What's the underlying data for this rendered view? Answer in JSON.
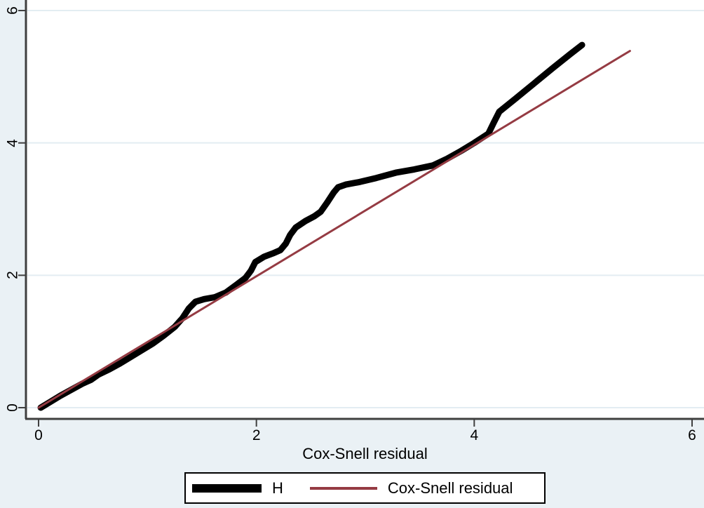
{
  "figure": {
    "background": "#eaf1f5",
    "plot_background": "#ffffff",
    "grid_color": "#e3edf2",
    "axis_color": "#3f3f3f",
    "text_color": "#000000"
  },
  "chart_data": {
    "type": "line",
    "title": "",
    "xlabel": "Cox-Snell residual",
    "ylabel": "",
    "xlim": [
      0,
      6
    ],
    "ylim": [
      0,
      6
    ],
    "xticks": [
      "0",
      "2",
      "4",
      "6"
    ],
    "yticks": [
      "0",
      "2",
      "4",
      "6"
    ],
    "grid": "horizontal-only",
    "legend_position": "bottom-center",
    "series": [
      {
        "name": "H",
        "color": "#000000",
        "stroke_width": 9,
        "points": [
          [
            0.02,
            0.0
          ],
          [
            0.1,
            0.08
          ],
          [
            0.2,
            0.18
          ],
          [
            0.3,
            0.27
          ],
          [
            0.4,
            0.36
          ],
          [
            0.48,
            0.42
          ],
          [
            0.55,
            0.5
          ],
          [
            0.65,
            0.58
          ],
          [
            0.75,
            0.67
          ],
          [
            0.85,
            0.77
          ],
          [
            0.95,
            0.87
          ],
          [
            1.05,
            0.97
          ],
          [
            1.15,
            1.09
          ],
          [
            1.25,
            1.22
          ],
          [
            1.32,
            1.35
          ],
          [
            1.38,
            1.5
          ],
          [
            1.44,
            1.6
          ],
          [
            1.52,
            1.64
          ],
          [
            1.62,
            1.67
          ],
          [
            1.72,
            1.74
          ],
          [
            1.82,
            1.86
          ],
          [
            1.9,
            1.96
          ],
          [
            1.95,
            2.07
          ],
          [
            1.99,
            2.2
          ],
          [
            2.07,
            2.28
          ],
          [
            2.15,
            2.33
          ],
          [
            2.22,
            2.38
          ],
          [
            2.27,
            2.48
          ],
          [
            2.31,
            2.61
          ],
          [
            2.36,
            2.72
          ],
          [
            2.45,
            2.82
          ],
          [
            2.53,
            2.89
          ],
          [
            2.59,
            2.96
          ],
          [
            2.65,
            3.1
          ],
          [
            2.71,
            3.25
          ],
          [
            2.75,
            3.33
          ],
          [
            2.82,
            3.37
          ],
          [
            2.95,
            3.41
          ],
          [
            3.1,
            3.47
          ],
          [
            3.28,
            3.55
          ],
          [
            3.45,
            3.6
          ],
          [
            3.62,
            3.66
          ],
          [
            3.75,
            3.76
          ],
          [
            3.88,
            3.88
          ],
          [
            4.0,
            4.0
          ],
          [
            4.13,
            4.14
          ],
          [
            4.18,
            4.31
          ],
          [
            4.23,
            4.47
          ],
          [
            4.38,
            4.67
          ],
          [
            4.55,
            4.9
          ],
          [
            4.72,
            5.13
          ],
          [
            4.88,
            5.34
          ],
          [
            4.99,
            5.48
          ]
        ]
      },
      {
        "name": "Cox-Snell residual",
        "color": "#953b43",
        "stroke_width": 3,
        "points": [
          [
            0.0,
            0.0
          ],
          [
            5.43,
            5.39
          ]
        ]
      }
    ]
  }
}
